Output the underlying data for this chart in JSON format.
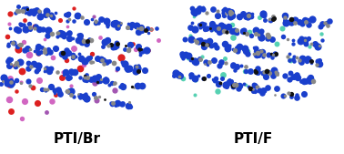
{
  "label_left": "PTI/Br",
  "label_right": "PTI/F",
  "label_fontsize": 11,
  "label_fontweight": "bold",
  "bg_color": "#ffffff",
  "fig_width": 3.78,
  "fig_height": 1.69,
  "dpi": 100,
  "blue_color": "#1a3fcc",
  "blue2_color": "#2244cc",
  "gray_color": "#888888",
  "darkgray_color": "#555555",
  "black_color": "#111111",
  "red_color": "#dd2020",
  "pink_color": "#cc55bb",
  "purple_color": "#9944aa",
  "cyan_color": "#44ccaa",
  "white_color": "#ffffff"
}
